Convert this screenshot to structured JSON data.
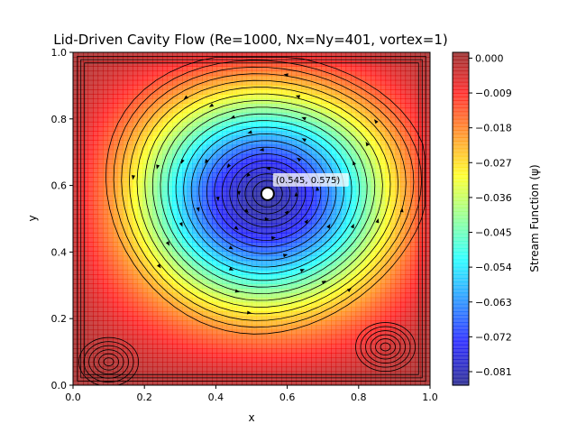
{
  "chart_data": {
    "type": "heatmap",
    "title": "Lid-Driven Cavity Flow (Re=1000, Nx=Ny=401, vortex=1)",
    "xlabel": "x",
    "ylabel": "y",
    "xlim": [
      0.0,
      1.0
    ],
    "ylim": [
      0.0,
      1.0
    ],
    "x_ticks": [
      "0.0",
      "0.2",
      "0.4",
      "0.6",
      "0.8",
      "1.0"
    ],
    "y_ticks": [
      "0.0",
      "0.2",
      "0.4",
      "0.6",
      "0.8",
      "1.0"
    ],
    "colorbar": {
      "label": "Stream Function (ψ)",
      "range": [
        -0.0845,
        0.0015
      ],
      "ticks": [
        "0.000",
        "−0.009",
        "−0.018",
        "−0.027",
        "−0.036",
        "−0.045",
        "−0.054",
        "−0.063",
        "−0.072",
        "−0.081"
      ],
      "colormap": "jet"
    },
    "primary_vortex": {
      "x": 0.545,
      "y": 0.575,
      "label": "(0.545, 0.575)"
    },
    "secondary_vortices": [
      {
        "x": 0.1,
        "y": 0.07
      },
      {
        "x": 0.875,
        "y": 0.115
      }
    ],
    "grid": false,
    "streamlines": true
  }
}
